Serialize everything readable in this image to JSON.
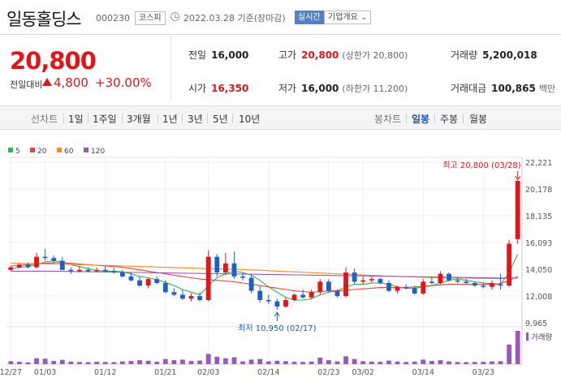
{
  "stock": {
    "name": "일동홀딩스",
    "code": "000230",
    "market": "코스피",
    "as_of": "2022.03.28 기준(장마감)",
    "realtime_label": "실시간",
    "overview_label": "기업개요",
    "overview_arrow": "⌄"
  },
  "price": {
    "current": "20,800",
    "change_label": "전일대비",
    "change_amount": "4,800",
    "change_percent": "+30.00%"
  },
  "stats": {
    "prev_close": {
      "label": "전일",
      "value": "16,000"
    },
    "high": {
      "label": "고가",
      "value": "20,800",
      "sub": "(상한가 20,800)"
    },
    "volume": {
      "label": "거래량",
      "value": "5,200,018"
    },
    "open": {
      "label": "시가",
      "value": "16,350"
    },
    "low": {
      "label": "저가",
      "value": "16,000",
      "sub": "(하한가 11,200)"
    },
    "trade_value": {
      "label": "거래대금",
      "value": "100,865",
      "unit": "백만"
    }
  },
  "toolbar": {
    "line_chart": "선차트",
    "periods": [
      "1일",
      "1주일",
      "3개월",
      "1년",
      "3년",
      "5년",
      "10년"
    ],
    "candle_chart": "봉차트",
    "candle_periods": [
      "일봉",
      "주봉",
      "월봉"
    ],
    "active_candle": "일봉"
  },
  "colors": {
    "up": "#e0161b",
    "down": "#1f5fc6",
    "ma5": "#36b34a",
    "ma20": "#e8463b",
    "ma60": "#f08c2e",
    "ma120": "#9b59b6",
    "volume": "#9b59b6"
  },
  "chart_data": {
    "type": "candlestick",
    "legend": [
      {
        "name": "5",
        "color": "#36b34a"
      },
      {
        "name": "20",
        "color": "#e8463b"
      },
      {
        "name": "60",
        "color": "#f08c2e"
      },
      {
        "name": "120",
        "color": "#9b59b6"
      }
    ],
    "ylim": [
      9965,
      22221
    ],
    "yticks": [
      "22,221",
      "20,178",
      "18,135",
      "16,093",
      "14,050",
      "12,008",
      "9,965"
    ],
    "ytick_values": [
      22221,
      20178,
      18135,
      16093,
      14050,
      12008,
      9965
    ],
    "xticks": [
      {
        "label": "12/27",
        "index": 0
      },
      {
        "label": "01/03",
        "index": 4
      },
      {
        "label": "01/12",
        "index": 11
      },
      {
        "label": "01/21",
        "index": 18
      },
      {
        "label": "02/03",
        "index": 23
      },
      {
        "label": "02/14",
        "index": 30
      },
      {
        "label": "02/23",
        "index": 37
      },
      {
        "label": "03/02",
        "index": 41
      },
      {
        "label": "03/14",
        "index": 48
      },
      {
        "label": "03/23",
        "index": 55
      }
    ],
    "candles": [
      [
        14000,
        14300,
        13900,
        14200,
        150
      ],
      [
        14200,
        14500,
        14100,
        14400,
        120
      ],
      [
        14400,
        14550,
        14100,
        14200,
        90
      ],
      [
        14200,
        15300,
        14100,
        15000,
        300
      ],
      [
        15000,
        15600,
        14700,
        14900,
        280
      ],
      [
        14900,
        15100,
        14500,
        14700,
        160
      ],
      [
        14700,
        15000,
        14000,
        14000,
        220
      ],
      [
        14000,
        14200,
        13700,
        13900,
        130
      ],
      [
        13900,
        14300,
        13800,
        14000,
        110
      ],
      [
        14000,
        14200,
        13800,
        13900,
        100
      ],
      [
        13900,
        14200,
        13800,
        14000,
        120
      ],
      [
        14000,
        14250,
        13800,
        13900,
        110
      ],
      [
        13900,
        14150,
        13700,
        13800,
        100
      ],
      [
        13800,
        14000,
        13400,
        13500,
        140
      ],
      [
        13500,
        13800,
        13100,
        13200,
        160
      ],
      [
        13200,
        13500,
        12700,
        12800,
        200
      ],
      [
        12800,
        13400,
        12600,
        13300,
        170
      ],
      [
        13300,
        13500,
        12900,
        13000,
        120
      ],
      [
        13000,
        13200,
        12200,
        12300,
        260
      ],
      [
        12300,
        12600,
        12000,
        12100,
        200
      ],
      [
        12100,
        12500,
        11700,
        11800,
        230
      ],
      [
        11800,
        12200,
        11600,
        12000,
        160
      ],
      [
        12000,
        12300,
        11600,
        11700,
        180
      ],
      [
        11700,
        15500,
        11600,
        15000,
        520
      ],
      [
        15000,
        15200,
        13500,
        13800,
        380
      ],
      [
        13800,
        15300,
        13600,
        14500,
        300
      ],
      [
        14500,
        15400,
        13300,
        13500,
        350
      ],
      [
        13500,
        13800,
        13200,
        13400,
        140
      ],
      [
        13400,
        13600,
        12200,
        12400,
        230
      ],
      [
        12400,
        12800,
        11500,
        11700,
        260
      ],
      [
        11700,
        12100,
        11400,
        11600,
        140
      ],
      [
        11600,
        11800,
        10950,
        11200,
        170
      ],
      [
        11200,
        11900,
        11100,
        11700,
        150
      ],
      [
        11700,
        12200,
        11600,
        12100,
        120
      ],
      [
        12100,
        12500,
        11800,
        11900,
        110
      ],
      [
        11900,
        12500,
        11800,
        12300,
        130
      ],
      [
        12300,
        13300,
        12100,
        13100,
        330
      ],
      [
        13100,
        13300,
        12300,
        12400,
        200
      ],
      [
        12400,
        12500,
        11900,
        12000,
        140
      ],
      [
        12000,
        14200,
        11900,
        13800,
        400
      ],
      [
        13800,
        14100,
        12900,
        13100,
        260
      ],
      [
        13100,
        13500,
        12900,
        13200,
        150
      ],
      [
        13200,
        13500,
        13000,
        13300,
        130
      ],
      [
        13300,
        13400,
        12900,
        13000,
        120
      ],
      [
        13000,
        13200,
        12300,
        12400,
        180
      ],
      [
        12400,
        12800,
        12200,
        12700,
        130
      ],
      [
        12700,
        12900,
        12500,
        12600,
        110
      ],
      [
        12600,
        12800,
        12100,
        12200,
        130
      ],
      [
        12200,
        13300,
        12100,
        13100,
        230
      ],
      [
        13100,
        13500,
        12900,
        13000,
        160
      ],
      [
        13000,
        13900,
        12900,
        13700,
        200
      ],
      [
        13700,
        13800,
        13100,
        13200,
        140
      ],
      [
        13200,
        13400,
        13000,
        13100,
        110
      ],
      [
        13100,
        13300,
        12900,
        13000,
        100
      ],
      [
        13000,
        13100,
        12700,
        12800,
        110
      ],
      [
        12800,
        13000,
        12600,
        12700,
        120
      ],
      [
        12700,
        13200,
        12500,
        13000,
        140
      ],
      [
        12900,
        13700,
        12500,
        12800,
        150
      ],
      [
        12800,
        16300,
        12700,
        16000,
        1000
      ],
      [
        16350,
        20800,
        16000,
        20800,
        1700
      ]
    ],
    "ma_lines": [
      {
        "name": "5",
        "color": "#36b34a",
        "values": [
          14100,
          14200,
          14250,
          14400,
          14600,
          14700,
          14600,
          14400,
          14250,
          14100,
          13950,
          13900,
          13900,
          13850,
          13700,
          13500,
          13400,
          13250,
          13050,
          12800,
          12500,
          12300,
          12100,
          12800,
          13400,
          13700,
          13900,
          13800,
          13600,
          13200,
          12700,
          12300,
          11900,
          11700,
          11700,
          11800,
          12100,
          12300,
          12400,
          12700,
          12900,
          12900,
          13000,
          13000,
          12900,
          12700,
          12600,
          12600,
          12700,
          12800,
          13000,
          13200,
          13300,
          13200,
          13100,
          13000,
          12950,
          12900,
          13800,
          15200
        ]
      },
      {
        "name": "20",
        "color": "#e8463b",
        "values": [
          14300,
          14350,
          14400,
          14450,
          14500,
          14550,
          14550,
          14500,
          14450,
          14400,
          14350,
          14300,
          14250,
          14200,
          14100,
          14000,
          13900,
          13800,
          13700,
          13600,
          13500,
          13400,
          13300,
          13250,
          13200,
          13150,
          13100,
          13000,
          12900,
          12800,
          12700,
          12600,
          12500,
          12400,
          12350,
          12300,
          12350,
          12400,
          12400,
          12450,
          12500,
          12550,
          12600,
          12650,
          12650,
          12650,
          12650,
          12700,
          12750,
          12800,
          12850,
          12900,
          12900,
          12900,
          12900,
          12900,
          12900,
          12950,
          13200,
          13500
        ]
      },
      {
        "name": "60",
        "color": "#f08c2e",
        "values": [
          14500,
          14500,
          14480,
          14470,
          14460,
          14450,
          14430,
          14420,
          14400,
          14380,
          14360,
          14340,
          14320,
          14300,
          14280,
          14260,
          14240,
          14220,
          14200,
          14180,
          14160,
          14140,
          14120,
          14100,
          14080,
          14060,
          14040,
          14020,
          14000,
          13970,
          13940,
          13910,
          13880,
          13850,
          13820,
          13790,
          13760,
          13730,
          13700,
          13670,
          13640,
          13610,
          13580,
          13550,
          13520,
          13500,
          13480,
          13460,
          13440,
          13420,
          13400,
          13390,
          13380,
          13370,
          13360,
          13350,
          13340,
          13330,
          13350,
          13400
        ]
      },
      {
        "name": "120",
        "color": "#9b59b6",
        "values": [
          13900,
          13900,
          13900,
          13900,
          13900,
          13900,
          13890,
          13880,
          13870,
          13860,
          13850,
          13840,
          13830,
          13820,
          13810,
          13800,
          13790,
          13780,
          13770,
          13760,
          13750,
          13740,
          13730,
          13720,
          13710,
          13700,
          13690,
          13680,
          13670,
          13660,
          13650,
          13640,
          13630,
          13620,
          13610,
          13600,
          13590,
          13580,
          13570,
          13560,
          13550,
          13540,
          13530,
          13520,
          13510,
          13500,
          13490,
          13480,
          13470,
          13460,
          13450,
          13440,
          13430,
          13420,
          13410,
          13400,
          13390,
          13380,
          13380,
          13380
        ]
      }
    ],
    "annotations": {
      "high": "최고 20,800 (03/28)",
      "low": "최저 10,950 (02/17)",
      "high_index": 59,
      "high_value": 20800,
      "low_index": 31,
      "low_value": 10950
    },
    "volume_label": "거래량"
  }
}
